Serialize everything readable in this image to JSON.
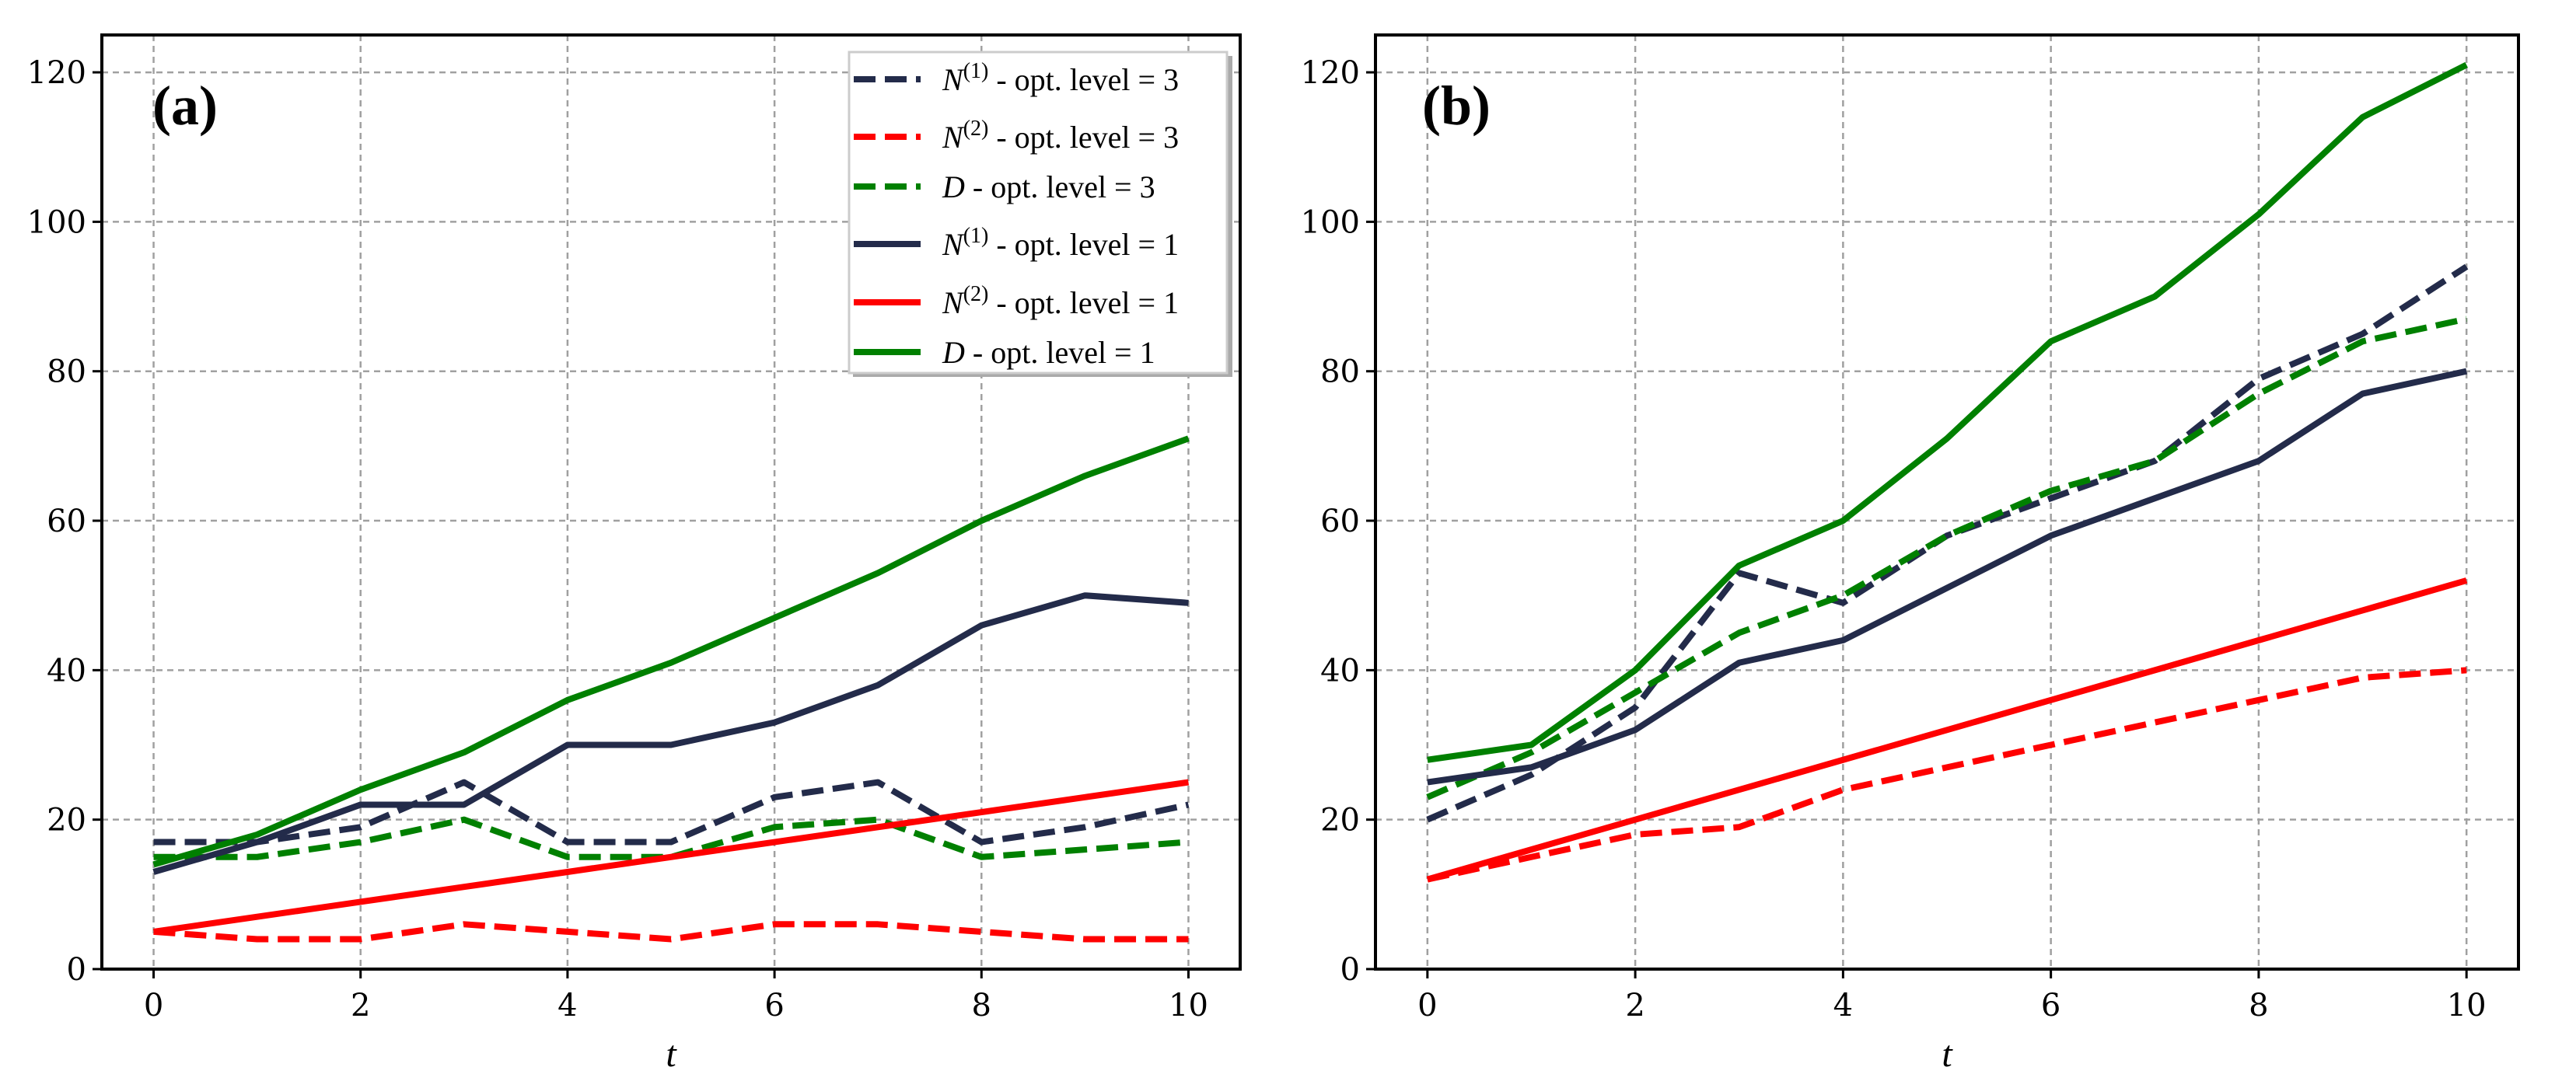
{
  "colors": {
    "navy": "#232b4a",
    "red": "#ff0000",
    "green": "#008000",
    "grid": "#a0a0a0"
  },
  "chart_data": [
    {
      "type": "line",
      "title": "",
      "panel_label": "(a)",
      "xlabel": "t",
      "ylabel": "",
      "xlim": [
        -0.5,
        10.5
      ],
      "ylim": [
        0,
        125
      ],
      "xticks": [
        0,
        2,
        4,
        6,
        8,
        10
      ],
      "yticks": [
        0,
        20,
        40,
        60,
        80,
        100,
        120
      ],
      "grid": true,
      "legend_position": "top-right",
      "x": [
        0,
        1,
        2,
        3,
        4,
        5,
        6,
        7,
        8,
        9,
        10
      ],
      "series": [
        {
          "name": "N(1) - opt. level = 3",
          "sym": "N",
          "sup": "(1)",
          "rest": " - opt. level = 3",
          "color": "#232b4a",
          "dashed": true,
          "values": [
            17,
            17,
            19,
            25,
            17,
            17,
            23,
            25,
            17,
            19,
            22
          ]
        },
        {
          "name": "N(2) - opt. level = 3",
          "sym": "N",
          "sup": "(2)",
          "rest": " - opt. level = 3",
          "color": "#ff0000",
          "dashed": true,
          "values": [
            5,
            4,
            4,
            6,
            5,
            4,
            6,
            6,
            5,
            4,
            4
          ]
        },
        {
          "name": "D - opt. level = 3",
          "sym": "D",
          "sup": "",
          "rest": " - opt. level = 3",
          "color": "#008000",
          "dashed": true,
          "values": [
            15,
            15,
            17,
            20,
            15,
            15,
            19,
            20,
            15,
            16,
            17
          ]
        },
        {
          "name": "N(1) - opt. level = 1",
          "sym": "N",
          "sup": "(1)",
          "rest": " - opt. level = 1",
          "color": "#232b4a",
          "dashed": false,
          "values": [
            13,
            17,
            22,
            22,
            30,
            30,
            33,
            38,
            46,
            50,
            49
          ]
        },
        {
          "name": "N(2) - opt. level = 1",
          "sym": "N",
          "sup": "(2)",
          "rest": " - opt. level = 1",
          "color": "#ff0000",
          "dashed": false,
          "values": [
            5,
            7,
            9,
            11,
            13,
            15,
            17,
            19,
            21,
            23,
            25
          ]
        },
        {
          "name": "D - opt. level = 1",
          "sym": "D",
          "sup": "",
          "rest": " - opt. level = 1",
          "color": "#008000",
          "dashed": false,
          "values": [
            14,
            18,
            24,
            29,
            36,
            41,
            47,
            53,
            60,
            66,
            71
          ]
        }
      ]
    },
    {
      "type": "line",
      "title": "",
      "panel_label": "(b)",
      "xlabel": "t",
      "ylabel": "",
      "xlim": [
        -0.5,
        10.5
      ],
      "ylim": [
        0,
        125
      ],
      "xticks": [
        0,
        2,
        4,
        6,
        8,
        10
      ],
      "yticks": [
        0,
        20,
        40,
        60,
        80,
        100,
        120
      ],
      "grid": true,
      "x": [
        0,
        1,
        2,
        3,
        4,
        5,
        6,
        7,
        8,
        9,
        10
      ],
      "series": [
        {
          "name": "N(1) - opt. level = 3",
          "color": "#232b4a",
          "dashed": true,
          "values": [
            20,
            26,
            35,
            53,
            49,
            58,
            63,
            68,
            79,
            85,
            94
          ]
        },
        {
          "name": "N(2) - opt. level = 3",
          "color": "#ff0000",
          "dashed": true,
          "values": [
            12,
            15,
            18,
            19,
            24,
            27,
            30,
            33,
            36,
            39,
            40
          ]
        },
        {
          "name": "D - opt. level = 3",
          "color": "#008000",
          "dashed": true,
          "values": [
            23,
            29,
            37,
            45,
            50,
            58,
            64,
            68,
            77,
            84,
            87
          ]
        },
        {
          "name": "N(1) - opt. level = 1",
          "color": "#232b4a",
          "dashed": false,
          "values": [
            25,
            27,
            32,
            41,
            44,
            51,
            58,
            63,
            68,
            77,
            80
          ]
        },
        {
          "name": "N(2) - opt. level = 1",
          "color": "#ff0000",
          "dashed": false,
          "values": [
            12,
            16,
            20,
            24,
            28,
            32,
            36,
            40,
            44,
            48,
            52
          ]
        },
        {
          "name": "D - opt. level = 1",
          "color": "#008000",
          "dashed": false,
          "values": [
            28,
            30,
            40,
            54,
            60,
            71,
            84,
            90,
            101,
            114,
            121
          ]
        }
      ]
    }
  ]
}
